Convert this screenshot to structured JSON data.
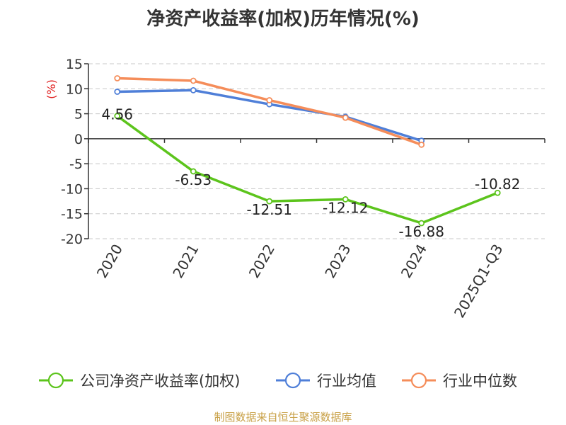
{
  "chart_data": {
    "type": "line",
    "title": "净资产收益率(加权)历年情况(%)",
    "ylabel": "(%)",
    "xlabel": "",
    "categories": [
      "2020",
      "2021",
      "2022",
      "2023",
      "2024",
      "2025Q1-Q3"
    ],
    "ylim": [
      -20,
      15
    ],
    "yticks": [
      15,
      10,
      5,
      0,
      -5,
      -10,
      -15,
      -20
    ],
    "grid": true,
    "legend_position": "bottom",
    "series": [
      {
        "name": "公司净资产收益率(加权)",
        "color": "#5cc41c",
        "values": [
          4.56,
          -6.53,
          -12.51,
          -12.12,
          -16.88,
          -10.82
        ],
        "labels": [
          "4.56",
          "-6.53",
          "-12.51",
          "-12.12",
          "-16.88",
          "-10.82"
        ]
      },
      {
        "name": "行业均值",
        "color": "#4f7fd8",
        "values": [
          9.4,
          9.7,
          6.9,
          4.4,
          -0.4,
          null
        ]
      },
      {
        "name": "行业中位数",
        "color": "#f58d5a",
        "values": [
          12.1,
          11.6,
          7.7,
          4.2,
          -1.2,
          null
        ]
      }
    ]
  },
  "footer": {
    "source": "制图数据来自恒生聚源数据库"
  }
}
